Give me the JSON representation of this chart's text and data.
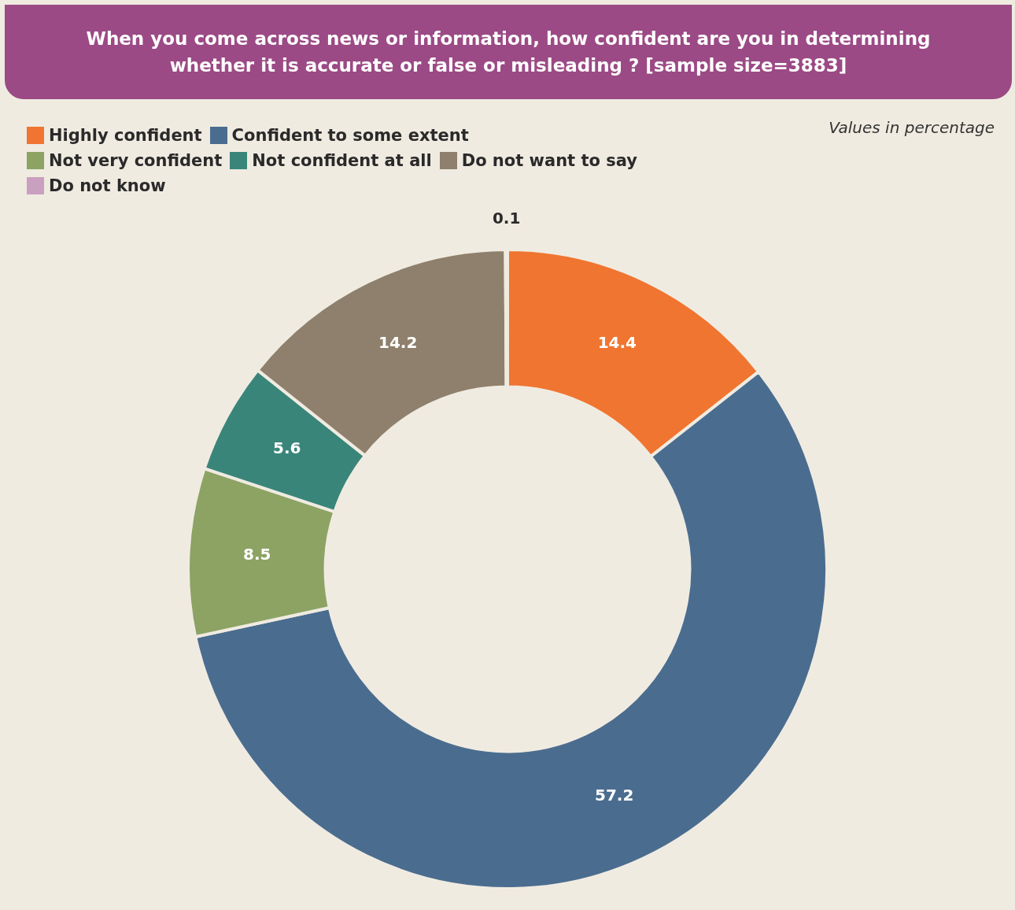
{
  "chart_data": {
    "type": "donut",
    "title": "When you come across news or information, how confident are you in determining whether it is accurate or false or misleading ? [sample size=3883]",
    "annotations": [
      "Values in percentage"
    ],
    "categories": [
      "Highly confident",
      "Confident to some extent",
      "Not very confident",
      "Not confident at all",
      "Do not want to say",
      "Do not know"
    ],
    "values": [
      14.4,
      57.2,
      8.5,
      5.6,
      14.2,
      0.1
    ],
    "colors": [
      "#f07530",
      "#4a6d8f",
      "#8ca364",
      "#3a857a",
      "#8e806c",
      "#c9a0c0"
    ],
    "data_labels": true,
    "legend": "top left"
  }
}
